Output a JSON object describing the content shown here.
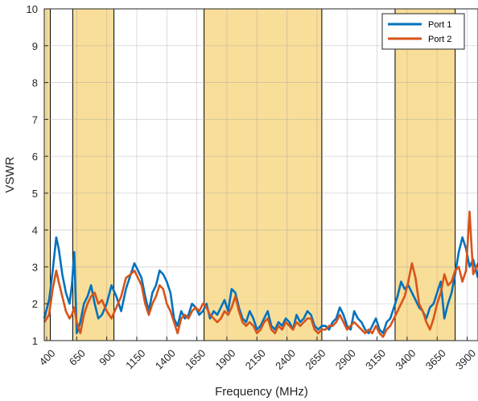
{
  "chart_data": {
    "type": "line",
    "title": "",
    "xlabel": "Frequency (MHz)",
    "ylabel": "VSWR",
    "xlim": [
      380,
      3990
    ],
    "ylim": [
      1,
      10
    ],
    "grid": true,
    "legend_position": "top-right",
    "x_ticks": [
      400,
      650,
      900,
      1150,
      1400,
      1650,
      1900,
      2150,
      2400,
      2650,
      2900,
      3150,
      3400,
      3650,
      3900
    ],
    "y_ticks": [
      1,
      2,
      3,
      4,
      5,
      6,
      7,
      8,
      9,
      10
    ],
    "highlight_bands": [
      {
        "from": 380,
        "to": 430
      },
      {
        "from": 617,
        "to": 960
      },
      {
        "from": 1710,
        "to": 2690
      },
      {
        "from": 3300,
        "to": 3800
      }
    ],
    "colors": {
      "Port 1": "#0072BD",
      "Port 2": "#D95319",
      "band_fill": "#F8DE99"
    },
    "x": [
      380,
      420,
      450,
      480,
      500,
      530,
      560,
      590,
      610,
      630,
      650,
      680,
      710,
      740,
      770,
      800,
      830,
      860,
      900,
      940,
      980,
      1020,
      1060,
      1100,
      1130,
      1160,
      1190,
      1220,
      1250,
      1280,
      1310,
      1340,
      1370,
      1400,
      1430,
      1460,
      1490,
      1520,
      1550,
      1580,
      1610,
      1640,
      1670,
      1700,
      1730,
      1760,
      1790,
      1820,
      1850,
      1880,
      1910,
      1940,
      1970,
      2000,
      2030,
      2060,
      2090,
      2120,
      2150,
      2180,
      2210,
      2240,
      2270,
      2300,
      2330,
      2360,
      2390,
      2420,
      2450,
      2480,
      2510,
      2540,
      2570,
      2600,
      2630,
      2660,
      2690,
      2720,
      2750,
      2780,
      2810,
      2840,
      2870,
      2900,
      2930,
      2960,
      2990,
      3020,
      3050,
      3080,
      3110,
      3140,
      3170,
      3200,
      3230,
      3260,
      3290,
      3320,
      3350,
      3380,
      3410,
      3440,
      3470,
      3500,
      3530,
      3560,
      3590,
      3620,
      3650,
      3680,
      3710,
      3740,
      3770,
      3800,
      3830,
      3860,
      3890,
      3920,
      3950,
      3990
    ],
    "series": [
      {
        "name": "Port 1",
        "values": [
          1.6,
          2.1,
          2.9,
          3.8,
          3.5,
          2.8,
          2.3,
          2.0,
          2.5,
          3.4,
          1.2,
          1.5,
          2.0,
          2.2,
          2.5,
          2.0,
          1.6,
          1.7,
          2.0,
          2.5,
          2.2,
          1.8,
          2.4,
          2.8,
          3.1,
          2.9,
          2.7,
          2.2,
          1.8,
          2.3,
          2.5,
          2.9,
          2.8,
          2.6,
          2.3,
          1.6,
          1.4,
          1.8,
          1.6,
          1.7,
          2.0,
          1.9,
          1.7,
          1.8,
          2.0,
          1.6,
          1.8,
          1.7,
          1.9,
          2.1,
          1.8,
          2.4,
          2.3,
          1.9,
          1.6,
          1.5,
          1.8,
          1.6,
          1.3,
          1.4,
          1.6,
          1.8,
          1.4,
          1.3,
          1.5,
          1.4,
          1.6,
          1.5,
          1.3,
          1.7,
          1.5,
          1.6,
          1.8,
          1.7,
          1.4,
          1.3,
          1.4,
          1.4,
          1.3,
          1.5,
          1.6,
          1.9,
          1.7,
          1.4,
          1.3,
          1.8,
          1.6,
          1.5,
          1.3,
          1.2,
          1.4,
          1.6,
          1.3,
          1.2,
          1.5,
          1.6,
          1.9,
          2.2,
          2.6,
          2.4,
          2.5,
          2.3,
          2.1,
          1.9,
          1.8,
          1.6,
          1.9,
          2.0,
          2.3,
          2.6,
          1.6,
          2.0,
          2.3,
          2.8,
          3.4,
          3.8,
          3.5,
          3.0,
          3.2,
          2.7
        ]
      },
      {
        "name": "Port 2",
        "values": [
          1.5,
          1.7,
          2.4,
          2.9,
          2.6,
          2.2,
          1.8,
          1.6,
          1.7,
          1.9,
          1.5,
          1.2,
          1.7,
          2.0,
          2.2,
          2.3,
          2.0,
          2.1,
          1.8,
          1.6,
          1.9,
          2.2,
          2.7,
          2.8,
          2.9,
          2.7,
          2.5,
          2.0,
          1.7,
          2.0,
          2.2,
          2.5,
          2.4,
          2.0,
          1.8,
          1.5,
          1.2,
          1.6,
          1.7,
          1.6,
          1.8,
          1.9,
          1.8,
          2.0,
          1.9,
          1.7,
          1.6,
          1.5,
          1.6,
          1.8,
          1.7,
          1.9,
          2.2,
          1.8,
          1.5,
          1.4,
          1.5,
          1.4,
          1.2,
          1.3,
          1.5,
          1.6,
          1.3,
          1.2,
          1.4,
          1.3,
          1.5,
          1.4,
          1.3,
          1.5,
          1.4,
          1.5,
          1.6,
          1.6,
          1.3,
          1.2,
          1.3,
          1.3,
          1.4,
          1.4,
          1.5,
          1.7,
          1.5,
          1.3,
          1.4,
          1.5,
          1.4,
          1.3,
          1.2,
          1.3,
          1.2,
          1.4,
          1.2,
          1.1,
          1.3,
          1.4,
          1.6,
          1.8,
          2.0,
          2.2,
          2.6,
          3.1,
          2.7,
          2.0,
          1.8,
          1.5,
          1.3,
          1.6,
          2.0,
          2.3,
          2.8,
          2.5,
          2.6,
          2.9,
          3.0,
          2.6,
          2.9,
          4.5,
          2.8,
          3.1
        ]
      }
    ]
  }
}
